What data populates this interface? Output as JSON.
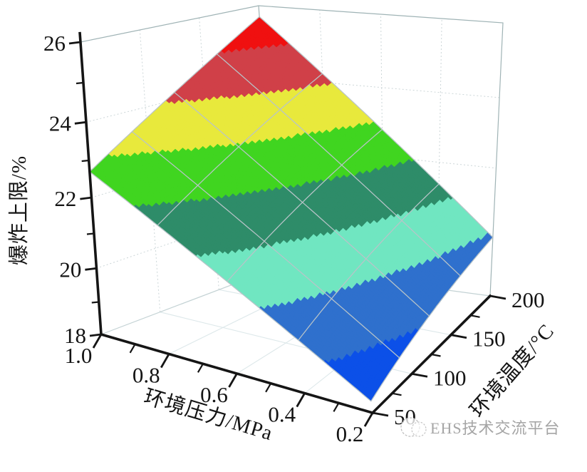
{
  "figure": {
    "watermark_text": "EHS技术交流平台"
  },
  "chart_data": {
    "type": "surface",
    "title": "",
    "z_axis": {
      "label": "爆炸上限/%",
      "min": 18,
      "max": 26,
      "major_ticks": [
        {
          "value": 18,
          "label": "18"
        },
        {
          "value": 20,
          "label": "20"
        },
        {
          "value": 22,
          "label": "22"
        },
        {
          "value": 24,
          "label": "24"
        },
        {
          "value": 26,
          "label": "26"
        }
      ],
      "minor_ticks": [
        19,
        21,
        23,
        25
      ]
    },
    "pressure_axis": {
      "label": "环境压力/MPa",
      "min": 0.2,
      "max": 1.0,
      "major_ticks": [
        {
          "value": 1.0,
          "label": "1.0"
        },
        {
          "value": 0.8,
          "label": "0.8"
        },
        {
          "value": 0.6,
          "label": "0.6"
        },
        {
          "value": 0.4,
          "label": "0.4"
        },
        {
          "value": 0.2,
          "label": "0.2"
        }
      ],
      "minor_ticks": [
        0.9,
        0.7,
        0.5,
        0.3
      ]
    },
    "temperature_axis": {
      "label": "环境温度/°C",
      "min": 50,
      "max": 200,
      "major_ticks": [
        {
          "value": 50,
          "label": "50"
        },
        {
          "value": 100,
          "label": "100"
        },
        {
          "value": 150,
          "label": "150"
        },
        {
          "value": 200,
          "label": "200"
        }
      ],
      "minor_ticks": [
        75,
        125,
        175
      ]
    },
    "surface": {
      "description": "爆炸上限 UEL(%) versus 环境压力(MPa) and 环境温度(°C); rises with both pressure and temperature",
      "corner_values": {
        "P1.0_T50": 22.7,
        "P1.0_T200": 25.7,
        "P0.2_T50": 18.3,
        "P0.2_T200": 19.9
      },
      "mesh_divisions": 4,
      "color_bands": [
        {
          "z_below": 19,
          "color": "#0c50e8"
        },
        {
          "z_below": 20,
          "color": "#2f70cd"
        },
        {
          "z_below": 21,
          "color": "#70e6c1"
        },
        {
          "z_below": 22,
          "color": "#2e8c69"
        },
        {
          "z_below": 23,
          "color": "#40d520"
        },
        {
          "z_below": 24,
          "color": "#e8e93c"
        },
        {
          "z_below": 25,
          "color": "#d04048"
        },
        {
          "z_below": 26,
          "color": "#f01010"
        }
      ]
    },
    "style": {
      "axis_color": "#151515",
      "box_edge_color": "#9fb3b5",
      "mesh_line_color": "#b8c4c8",
      "wall_grid_color": "#ccd6d8",
      "floor_grid_color": "#dde8ea"
    }
  }
}
